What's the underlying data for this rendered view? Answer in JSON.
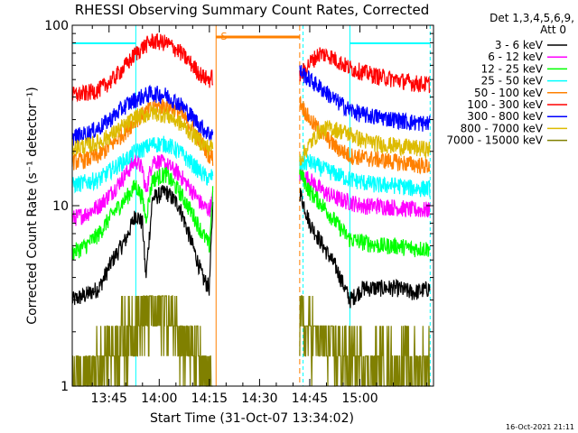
{
  "chart_data": {
    "type": "line",
    "title": "RHESSI Observing Summary Count Rates, Corrected",
    "xlabel": "Start Time (31-Oct-07 13:34:02)",
    "ylabel": "Corrected Count Rate (s⁻¹ detector⁻¹)",
    "yscale": "log",
    "ylim": [
      1,
      100
    ],
    "xlim_minutes": [
      34,
      142
    ],
    "x_ticks": [
      {
        "m": 45,
        "label": "13:45"
      },
      {
        "m": 60,
        "label": "14:00"
      },
      {
        "m": 75,
        "label": "14:15"
      },
      {
        "m": 90,
        "label": "14:30"
      },
      {
        "m": 105,
        "label": "14:45"
      },
      {
        "m": 120,
        "label": "15:00"
      }
    ],
    "y_ticks": [
      {
        "v": 1,
        "label": "1"
      },
      {
        "v": 10,
        "label": "10"
      },
      {
        "v": 100,
        "label": "100"
      }
    ],
    "legend_header": [
      "Det 1,3,4,5,6,9,",
      "Att 0"
    ],
    "grid": false,
    "legend_position": "top-right",
    "saa_marker": "S",
    "footer_date": "16-Oct-2021 21:11",
    "day_night_markers_minutes": [
      34,
      53,
      103,
      117,
      141
    ],
    "night_start_minutes": [
      53,
      117
    ],
    "saa_interval_minutes": [
      77,
      102
    ],
    "segments_minutes": [
      [
        34,
        76
      ],
      [
        102,
        141
      ]
    ],
    "series": [
      {
        "name": "3 - 6 keV",
        "color": "#000000",
        "profile": [
          [
            34,
            3.0
          ],
          [
            38,
            3.2
          ],
          [
            42,
            3.5
          ],
          [
            46,
            5.0
          ],
          [
            50,
            6.5
          ],
          [
            53,
            9.0
          ],
          [
            55,
            8.0
          ],
          [
            56,
            4.0
          ],
          [
            58,
            11.0
          ],
          [
            62,
            12.0
          ],
          [
            66,
            10.0
          ],
          [
            70,
            6.0
          ],
          [
            73,
            4.0
          ],
          [
            75,
            3.5
          ],
          [
            76,
            10.0
          ],
          [
            102,
            12.0
          ],
          [
            105,
            8.0
          ],
          [
            109,
            6.0
          ],
          [
            113,
            4.5
          ],
          [
            117,
            3.0
          ],
          [
            121,
            3.5
          ],
          [
            126,
            3.5
          ],
          [
            131,
            3.5
          ],
          [
            136,
            3.3
          ],
          [
            141,
            3.5
          ]
        ]
      },
      {
        "name": "6 - 12 keV",
        "color": "#ff00ff",
        "profile": [
          [
            34,
            8.5
          ],
          [
            38,
            9.0
          ],
          [
            42,
            10.0
          ],
          [
            46,
            12.0
          ],
          [
            50,
            15.0
          ],
          [
            53,
            18.0
          ],
          [
            55,
            16.0
          ],
          [
            56,
            12.0
          ],
          [
            58,
            18.0
          ],
          [
            62,
            17.0
          ],
          [
            66,
            15.0
          ],
          [
            70,
            12.0
          ],
          [
            73,
            10.0
          ],
          [
            75,
            9.5
          ],
          [
            76,
            11.0
          ],
          [
            102,
            15.0
          ],
          [
            105,
            14.0
          ],
          [
            109,
            12.0
          ],
          [
            113,
            11.0
          ],
          [
            117,
            10.5
          ],
          [
            121,
            10.0
          ],
          [
            126,
            10.0
          ],
          [
            131,
            9.8
          ],
          [
            136,
            9.5
          ],
          [
            141,
            9.5
          ]
        ]
      },
      {
        "name": "12 - 25 keV",
        "color": "#00ff00",
        "profile": [
          [
            34,
            5.5
          ],
          [
            38,
            6.0
          ],
          [
            42,
            7.0
          ],
          [
            46,
            9.0
          ],
          [
            50,
            11.0
          ],
          [
            53,
            13.0
          ],
          [
            55,
            11.0
          ],
          [
            56,
            8.5
          ],
          [
            58,
            14.0
          ],
          [
            62,
            15.0
          ],
          [
            66,
            12.0
          ],
          [
            70,
            9.0
          ],
          [
            73,
            7.0
          ],
          [
            75,
            6.0
          ],
          [
            76,
            12.0
          ],
          [
            102,
            15.5
          ],
          [
            105,
            12.0
          ],
          [
            109,
            10.0
          ],
          [
            113,
            8.0
          ],
          [
            117,
            6.5
          ],
          [
            121,
            6.3
          ],
          [
            126,
            6.0
          ],
          [
            131,
            6.0
          ],
          [
            136,
            5.8
          ],
          [
            141,
            5.8
          ]
        ]
      },
      {
        "name": "25 - 50 keV",
        "color": "#00ffff",
        "profile": [
          [
            34,
            13.0
          ],
          [
            38,
            13.5
          ],
          [
            42,
            14.0
          ],
          [
            46,
            16.0
          ],
          [
            50,
            18.0
          ],
          [
            53,
            20.0
          ],
          [
            56,
            21.0
          ],
          [
            58,
            22.0
          ],
          [
            62,
            22.0
          ],
          [
            66,
            20.0
          ],
          [
            70,
            17.0
          ],
          [
            73,
            15.0
          ],
          [
            75,
            14.0
          ],
          [
            76,
            15.0
          ],
          [
            102,
            17.0
          ],
          [
            105,
            17.5
          ],
          [
            109,
            16.0
          ],
          [
            113,
            15.0
          ],
          [
            117,
            14.0
          ],
          [
            121,
            13.5
          ],
          [
            126,
            13.0
          ],
          [
            131,
            13.0
          ],
          [
            136,
            12.5
          ],
          [
            141,
            12.5
          ]
        ]
      },
      {
        "name": "50 - 100 keV",
        "color": "#ff8000",
        "profile": [
          [
            34,
            17.5
          ],
          [
            38,
            18.0
          ],
          [
            42,
            19.0
          ],
          [
            46,
            22.0
          ],
          [
            50,
            26.0
          ],
          [
            53,
            30.0
          ],
          [
            56,
            33.0
          ],
          [
            58,
            35.0
          ],
          [
            62,
            36.0
          ],
          [
            66,
            33.0
          ],
          [
            70,
            27.0
          ],
          [
            73,
            22.0
          ],
          [
            75,
            19.0
          ],
          [
            76,
            18.5
          ],
          [
            102,
            38.0
          ],
          [
            105,
            30.0
          ],
          [
            109,
            25.0
          ],
          [
            113,
            21.0
          ],
          [
            117,
            19.0
          ],
          [
            121,
            18.5
          ],
          [
            126,
            18.0
          ],
          [
            131,
            17.5
          ],
          [
            136,
            17.0
          ],
          [
            141,
            16.5
          ]
        ]
      },
      {
        "name": "100 - 300 keV",
        "color": "#ff0000",
        "profile": [
          [
            34,
            41.0
          ],
          [
            38,
            42.0
          ],
          [
            42,
            44.0
          ],
          [
            46,
            50.0
          ],
          [
            50,
            60.0
          ],
          [
            53,
            70.0
          ],
          [
            56,
            78.0
          ],
          [
            58,
            82.0
          ],
          [
            62,
            80.0
          ],
          [
            66,
            72.0
          ],
          [
            70,
            60.0
          ],
          [
            73,
            52.0
          ],
          [
            75,
            50.0
          ],
          [
            76,
            52.0
          ],
          [
            102,
            52.0
          ],
          [
            105,
            62.0
          ],
          [
            108,
            70.0
          ],
          [
            111,
            68.0
          ],
          [
            113,
            64.0
          ],
          [
            117,
            58.0
          ],
          [
            121,
            55.0
          ],
          [
            126,
            52.0
          ],
          [
            131,
            50.0
          ],
          [
            136,
            48.0
          ],
          [
            141,
            47.0
          ]
        ]
      },
      {
        "name": "300 - 800 keV",
        "color": "#0000ff",
        "profile": [
          [
            34,
            24.0
          ],
          [
            38,
            25.0
          ],
          [
            42,
            27.0
          ],
          [
            46,
            31.0
          ],
          [
            50,
            36.0
          ],
          [
            53,
            39.0
          ],
          [
            56,
            41.0
          ],
          [
            58,
            42.0
          ],
          [
            62,
            41.0
          ],
          [
            66,
            37.0
          ],
          [
            70,
            31.0
          ],
          [
            73,
            27.0
          ],
          [
            75,
            25.0
          ],
          [
            76,
            25.5
          ],
          [
            102,
            56.0
          ],
          [
            105,
            50.0
          ],
          [
            109,
            44.0
          ],
          [
            113,
            38.0
          ],
          [
            117,
            34.0
          ],
          [
            121,
            32.0
          ],
          [
            126,
            31.0
          ],
          [
            131,
            30.0
          ],
          [
            136,
            29.0
          ],
          [
            141,
            28.5
          ]
        ]
      },
      {
        "name": "800 - 7000 keV",
        "color": "#ddbb00",
        "profile": [
          [
            34,
            21.0
          ],
          [
            38,
            21.5
          ],
          [
            42,
            22.5
          ],
          [
            46,
            25.0
          ],
          [
            50,
            28.0
          ],
          [
            53,
            31.0
          ],
          [
            56,
            32.0
          ],
          [
            58,
            33.0
          ],
          [
            62,
            32.0
          ],
          [
            66,
            29.0
          ],
          [
            70,
            25.0
          ],
          [
            73,
            22.0
          ],
          [
            75,
            21.0
          ],
          [
            76,
            21.5
          ],
          [
            102,
            18.0
          ],
          [
            105,
            22.0
          ],
          [
            108,
            26.0
          ],
          [
            111,
            27.0
          ],
          [
            113,
            26.5
          ],
          [
            117,
            25.0
          ],
          [
            121,
            23.0
          ],
          [
            126,
            22.0
          ],
          [
            131,
            21.5
          ],
          [
            136,
            21.0
          ],
          [
            141,
            20.5
          ]
        ]
      },
      {
        "name": "7000 - 15000 keV",
        "color": "#808000",
        "profile": [
          [
            34,
            1.2
          ],
          [
            40,
            1.2
          ],
          [
            44,
            1.6
          ],
          [
            46,
            1.6
          ],
          [
            50,
            2.0
          ],
          [
            53,
            2.3
          ],
          [
            56,
            2.5
          ],
          [
            58,
            2.6
          ],
          [
            62,
            2.5
          ],
          [
            66,
            2.2
          ],
          [
            70,
            1.6
          ],
          [
            73,
            1.2
          ],
          [
            75,
            1.1
          ],
          [
            76,
            1.1
          ],
          [
            102,
            2.3
          ],
          [
            105,
            2.0
          ],
          [
            109,
            1.8
          ],
          [
            113,
            1.5
          ],
          [
            117,
            1.4
          ],
          [
            121,
            1.3
          ],
          [
            126,
            1.3
          ],
          [
            131,
            1.3
          ],
          [
            136,
            1.3
          ],
          [
            141,
            1.3
          ]
        ]
      }
    ]
  }
}
